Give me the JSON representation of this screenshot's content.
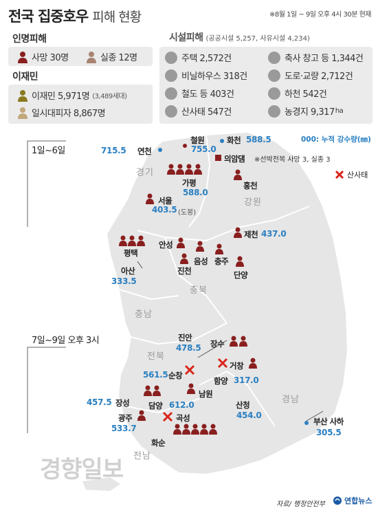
{
  "header": {
    "title": "전국 집중호우",
    "subtitle": "피해 현황",
    "as_of": "※8월 1일 ~ 9일 오후 4시 30분 현재"
  },
  "casualties": {
    "title": "인명피해",
    "deaths": "사망 30명",
    "missing": "실종 12명",
    "title_color": "#a82222"
  },
  "displaced": {
    "title": "이재민",
    "title_color": "#8a7a1f",
    "displaced_label": "이재민 5,971명",
    "households": "(3,489세대)",
    "evacuees": "일시대피자 8,867명"
  },
  "facilities": {
    "title": "시설피해",
    "summary": "(공공시설 5,257, 사유시설 4,234)",
    "items": [
      {
        "icon": "house-icon",
        "label": "주택 2,572건"
      },
      {
        "icon": "barn-icon",
        "label": "축사 창고 등 1,344건"
      },
      {
        "icon": "greenhouse-icon",
        "label": "비닐하우스 318건"
      },
      {
        "icon": "road-icon",
        "label": "도로·교량 2,712건"
      },
      {
        "icon": "railway-icon",
        "label": "철도 등 403건"
      },
      {
        "icon": "river-icon",
        "label": "하천 542건"
      },
      {
        "icon": "landslide-icon",
        "label": "산사태 547건"
      },
      {
        "icon": "farmland-icon",
        "label": "농경지 9,317",
        "unit": "ha"
      }
    ]
  },
  "legend": {
    "rain": "000: 누적 강수량(㎜)",
    "landslide": "산사태",
    "rain_color": "#2a7fc1",
    "death_color": "#8a1f1f",
    "landslide_color": "#d9261c"
  },
  "periods": {
    "first": "1일~6일",
    "second": "7일~9일 오후 3시"
  },
  "provinces": [
    "경기",
    "강원",
    "충북",
    "충남",
    "전북",
    "경남",
    "전남"
  ],
  "places": {
    "cheolwon": {
      "name": "철원",
      "rain": "755.0"
    },
    "hwacheon": {
      "name": "화천",
      "rain": "588.5"
    },
    "yeoncheon": {
      "name": "연천",
      "rain": "715.5"
    },
    "uiamdam": {
      "name": "의암댐",
      "note": "※선박전복 사망 3, 실종 3"
    },
    "gapyeong": {
      "name": "가평",
      "rain": "588.0"
    },
    "hongcheon": {
      "name": "홍천"
    },
    "seoul": {
      "name": "서울",
      "rain": "403.5",
      "note": "(도봉)"
    },
    "anseong": {
      "name": "안성"
    },
    "jecheon": {
      "name": "제천",
      "rain": "437.0"
    },
    "pyeongtaek": {
      "name": "평택"
    },
    "eumseong": {
      "name": "음성"
    },
    "chungju": {
      "name": "충주"
    },
    "jincheon": {
      "name": "진천"
    },
    "danyang": {
      "name": "단양"
    },
    "asan": {
      "name": "아산",
      "rain": "333.5"
    },
    "jinan": {
      "name": "진안",
      "rain": "478.5"
    },
    "jangsu": {
      "name": "장수"
    },
    "sunchang": {
      "name": "순창",
      "rain": "561.5"
    },
    "geochang": {
      "name": "거창"
    },
    "hamyang": {
      "name": "함양",
      "rain": "317.0"
    },
    "namwon": {
      "name": "남원"
    },
    "jangseong": {
      "name": "장성",
      "rain": "457.5"
    },
    "damyang": {
      "name": "담양",
      "rain": "612.0"
    },
    "sancheong": {
      "name": "산청",
      "rain": "454.0"
    },
    "gwangju": {
      "name": "광주",
      "rain": "533.7"
    },
    "gokseong": {
      "name": "곡성"
    },
    "busan": {
      "name": "부산 사하",
      "rain": "305.5"
    },
    "hwasun": {
      "name": "화순"
    }
  },
  "footer": {
    "source": "자료/ 행정안전부",
    "agency": "연합뉴스",
    "watermark": "경향일보"
  }
}
